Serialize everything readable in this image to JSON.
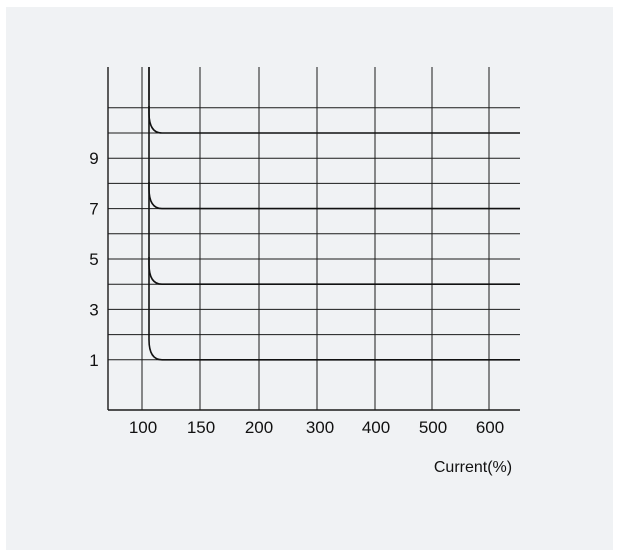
{
  "chart_data": {
    "type": "line",
    "title": "",
    "xlabel": "Current(%)",
    "ylabel": "",
    "x_ticks": [
      "100",
      "150",
      "200",
      "300",
      "400",
      "500",
      "600"
    ],
    "y_ticks": [
      "1",
      "3",
      "5",
      "7",
      "9"
    ],
    "grid": true,
    "legend": "none",
    "series": [
      {
        "asymptote_x": "100",
        "level": 1
      },
      {
        "asymptote_x": "100",
        "level": 4
      },
      {
        "asymptote_x": "100",
        "level": 7
      },
      {
        "asymptote_x": "100",
        "level": 10
      }
    ]
  },
  "colors": {
    "background": "#f0f2f4",
    "grid": "#1a1a1a",
    "curve": "#111111"
  }
}
